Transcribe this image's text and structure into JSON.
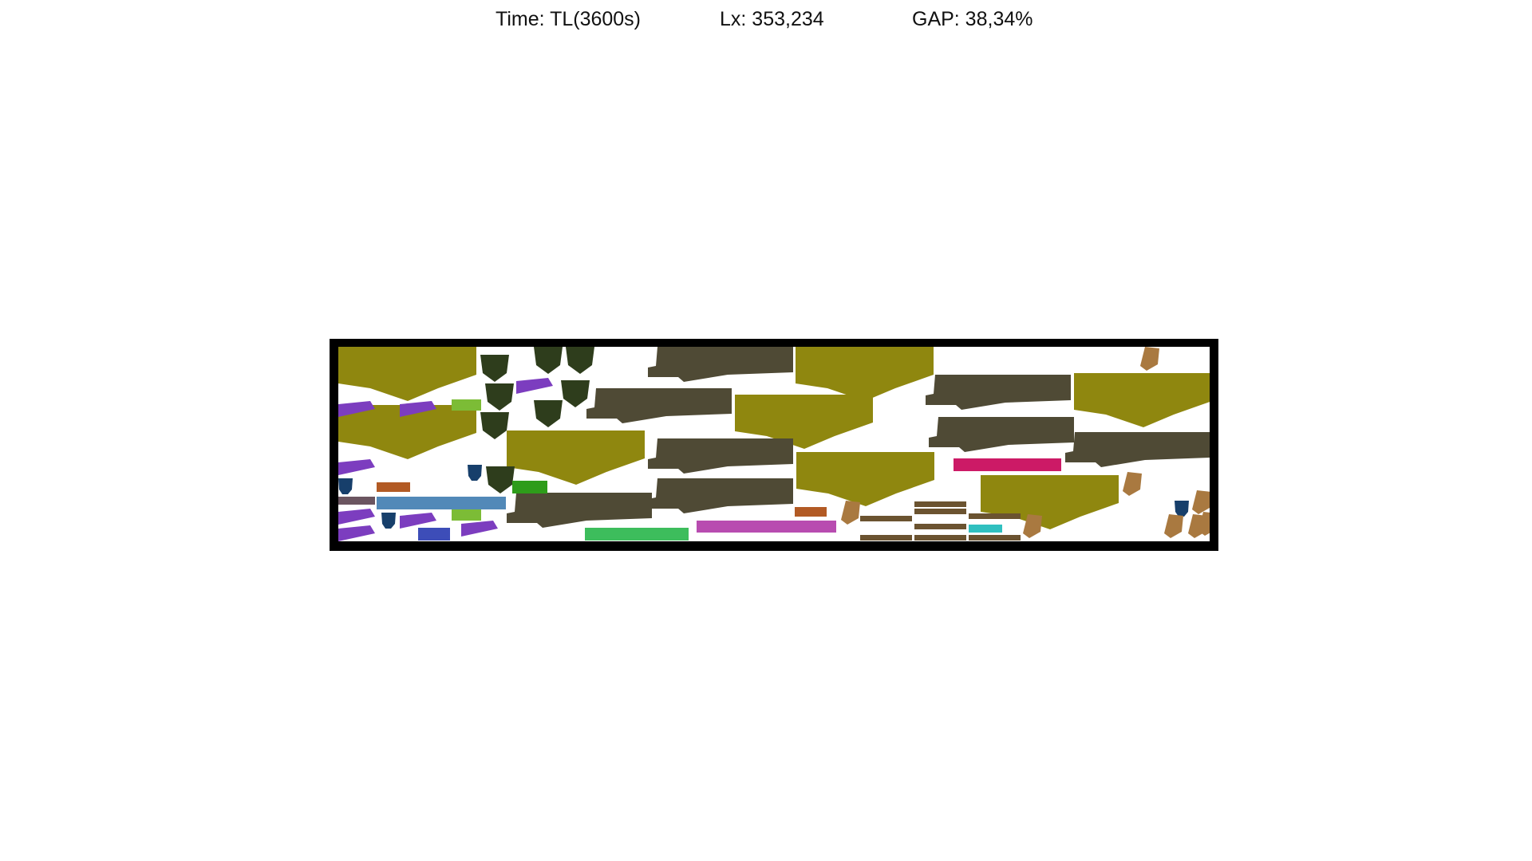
{
  "header": {
    "time": "Time: TL(3600s)",
    "lx": "Lx: 353,234",
    "gap": "GAP: 38,34%"
  },
  "colors": {
    "frame": "#000000",
    "sheet": "#ffffff",
    "olive": "#8f870f",
    "dark_taupe": "#4f4a35",
    "dark_green": "#2e3d1c",
    "purple": "#7c3dbf",
    "navy": "#173f6b",
    "orange": "#b25a24",
    "steel_blue": "#5289b8",
    "lime": "#7cbc36",
    "green": "#2e9c1a",
    "blue": "#3d4db8",
    "emerald": "#3dbd5c",
    "magenta": "#b84cb0",
    "crimson": "#cc1a66",
    "teal": "#30c0c0",
    "tan": "#a97940",
    "brown": "#6b5330",
    "mauve": "#6b5560"
  }
}
